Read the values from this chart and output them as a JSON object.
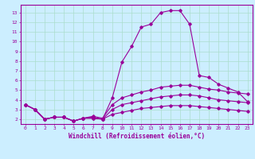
{
  "xlabel": "Windchill (Refroidissement éolien,°C)",
  "bg_color": "#cceeff",
  "line_color": "#990099",
  "grid_color": "#aaddcc",
  "xlim": [
    -0.5,
    23.5
  ],
  "ylim": [
    1.5,
    13.8
  ],
  "xticks": [
    0,
    1,
    2,
    3,
    4,
    5,
    6,
    7,
    8,
    9,
    10,
    11,
    12,
    13,
    14,
    15,
    16,
    17,
    18,
    19,
    20,
    21,
    22,
    23
  ],
  "yticks": [
    2,
    3,
    4,
    5,
    6,
    7,
    8,
    9,
    10,
    11,
    12,
    13
  ],
  "lines": [
    {
      "x": [
        0,
        1,
        2,
        3,
        4,
        5,
        6,
        7,
        8,
        9,
        10,
        11,
        12,
        13,
        14,
        15,
        16,
        17,
        18,
        19,
        20,
        21,
        22,
        23
      ],
      "y": [
        3.5,
        3.0,
        2.0,
        2.2,
        2.2,
        1.8,
        2.1,
        2.1,
        2.0,
        4.2,
        7.9,
        9.5,
        11.5,
        11.8,
        13.0,
        13.2,
        13.2,
        11.8,
        6.5,
        6.3,
        5.6,
        5.2,
        4.8,
        3.8
      ]
    },
    {
      "x": [
        0,
        1,
        2,
        3,
        4,
        5,
        6,
        7,
        8,
        9,
        10,
        11,
        12,
        13,
        14,
        15,
        16,
        17,
        18,
        19,
        20,
        21,
        22,
        23
      ],
      "y": [
        3.5,
        3.0,
        2.0,
        2.2,
        2.2,
        1.8,
        2.1,
        2.3,
        2.1,
        3.5,
        4.2,
        4.5,
        4.8,
        5.0,
        5.3,
        5.4,
        5.5,
        5.5,
        5.3,
        5.1,
        5.0,
        4.8,
        4.7,
        4.6
      ]
    },
    {
      "x": [
        0,
        1,
        2,
        3,
        4,
        5,
        6,
        7,
        8,
        9,
        10,
        11,
        12,
        13,
        14,
        15,
        16,
        17,
        18,
        19,
        20,
        21,
        22,
        23
      ],
      "y": [
        3.5,
        3.0,
        2.0,
        2.2,
        2.2,
        1.8,
        2.1,
        2.2,
        2.0,
        3.0,
        3.5,
        3.7,
        3.9,
        4.1,
        4.3,
        4.4,
        4.5,
        4.5,
        4.4,
        4.2,
        4.0,
        3.9,
        3.8,
        3.7
      ]
    },
    {
      "x": [
        0,
        1,
        2,
        3,
        4,
        5,
        6,
        7,
        8,
        9,
        10,
        11,
        12,
        13,
        14,
        15,
        16,
        17,
        18,
        19,
        20,
        21,
        22,
        23
      ],
      "y": [
        3.5,
        3.0,
        2.0,
        2.2,
        2.2,
        1.8,
        2.1,
        2.1,
        2.0,
        2.5,
        2.7,
        2.9,
        3.1,
        3.2,
        3.3,
        3.4,
        3.4,
        3.4,
        3.3,
        3.2,
        3.1,
        3.0,
        2.9,
        2.8
      ]
    }
  ],
  "tick_fontsize": 4.5,
  "xlabel_fontsize": 5.5
}
